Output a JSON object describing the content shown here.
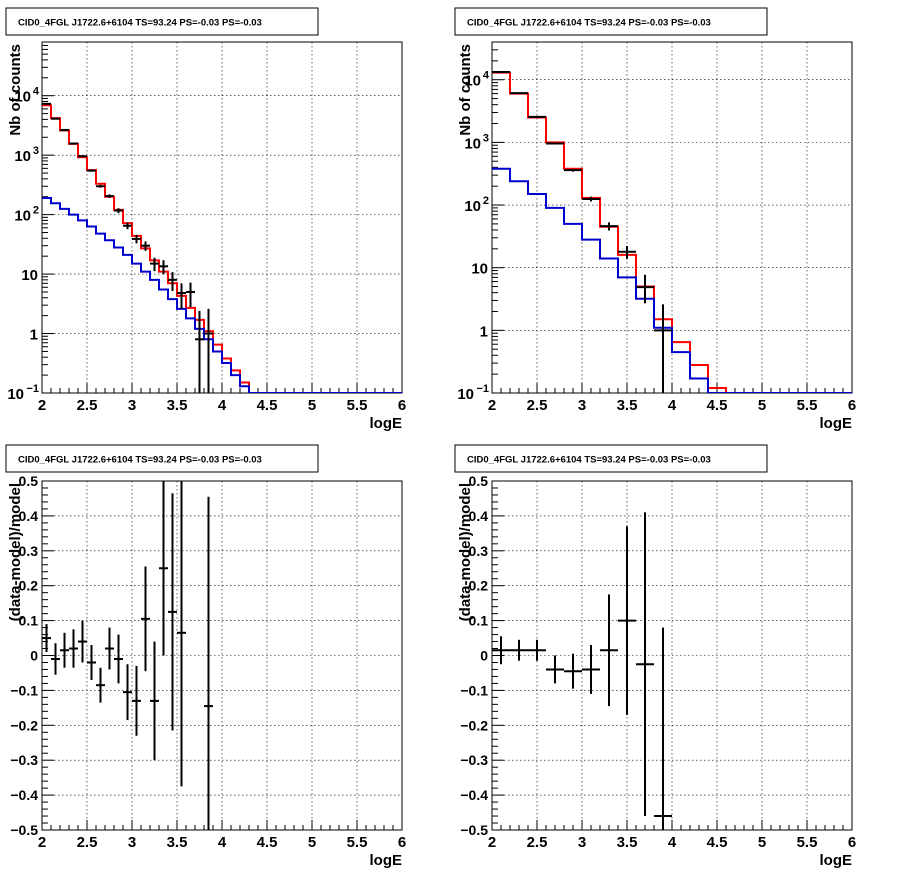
{
  "panel_title": "CID0_4FGL J1722.6+6104 TS=93.24 PS=-0.03 PS=-0.03",
  "colors": {
    "data": "#000000",
    "total_model": "#ff0000",
    "background_model": "#0000cc",
    "grid": "#000000"
  },
  "chart_data": [
    {
      "type": "line",
      "panel": "top-left",
      "title": "CID0_4FGL J1722.6+6104 TS=93.24 PS=-0.03 PS=-0.03",
      "xlabel": "logE",
      "ylabel": "Nb of counts",
      "xlim": [
        2,
        6
      ],
      "ylim": [
        0.1,
        80000
      ],
      "yscale": "log",
      "grid": true,
      "x_ticks": [
        "2",
        "2.5",
        "3",
        "3.5",
        "4",
        "4.5",
        "5",
        "5.5",
        "6"
      ],
      "y_ticks": [
        {
          "value": 0.1,
          "label": "10",
          "sup": "−1"
        },
        {
          "value": 1,
          "label": "1",
          "sup": ""
        },
        {
          "value": 10,
          "label": "10",
          "sup": ""
        },
        {
          "value": 100,
          "label": "10",
          "sup": "2"
        },
        {
          "value": 1000,
          "label": "10",
          "sup": "3"
        },
        {
          "value": 10000,
          "label": "10",
          "sup": "4"
        }
      ],
      "bin_edges": [
        2.0,
        2.1,
        2.2,
        2.3,
        2.4,
        2.5,
        2.6,
        2.7,
        2.8,
        2.9,
        3.0,
        3.1,
        3.2,
        3.3,
        3.4,
        3.5,
        3.6,
        3.7,
        3.8,
        3.9,
        4.0,
        4.1,
        4.2,
        4.3,
        4.4,
        4.5,
        4.6,
        4.7,
        4.8,
        4.9,
        5.0,
        5.1,
        5.2,
        5.3,
        5.4,
        5.5,
        5.6,
        5.7,
        5.8,
        5.9,
        6.0
      ],
      "series": [
        {
          "name": "",
          "color": "#ff0000",
          "style": "step",
          "values": [
            6900,
            4200,
            2600,
            1550,
            920,
            560,
            330,
            200,
            120,
            72,
            44,
            27,
            17,
            11,
            7,
            4.3,
            2.7,
            1.7,
            1.1,
            0.65,
            0.38,
            0.24,
            0.15,
            0.1,
            0.1,
            0.1,
            0.1,
            0.1,
            0.1,
            0.1,
            0.1,
            0.1,
            0.1,
            0.1,
            0.1,
            0.1,
            0.1,
            0.1,
            0.1,
            0.1
          ]
        },
        {
          "name": "",
          "color": "#0000cc",
          "style": "step",
          "values": [
            190,
            155,
            125,
            100,
            80,
            63,
            48,
            37,
            28,
            21,
            15,
            11,
            8,
            5.5,
            3.8,
            2.6,
            1.8,
            1.2,
            0.8,
            0.5,
            0.32,
            0.2,
            0.13,
            0.1,
            0.1,
            0.1,
            0.1,
            0.1,
            0.1,
            0.1,
            0.1,
            0.1,
            0.1,
            0.1,
            0.1,
            0.1,
            0.1,
            0.1,
            0.1,
            0.1
          ]
        },
        {
          "name": "",
          "color": "#000000",
          "style": "errorbar",
          "x": [
            2.05,
            2.15,
            2.25,
            2.35,
            2.45,
            2.55,
            2.65,
            2.75,
            2.85,
            2.95,
            3.05,
            3.15,
            3.25,
            3.35,
            3.45,
            3.55,
            3.65,
            3.75,
            3.85
          ],
          "y": [
            7300,
            4100,
            2650,
            1570,
            960,
            550,
            300,
            205,
            117,
            65,
            39,
            30,
            15,
            13.5,
            8,
            4.8,
            5,
            0.8,
            1
          ],
          "yerr_lo": [
            85,
            64,
            51,
            40,
            31,
            23,
            17,
            14,
            11,
            8,
            6.2,
            5.4,
            3.8,
            3.6,
            2.8,
            2.2,
            2.2,
            0.72,
            0.9
          ],
          "yerr_hi": [
            85,
            64,
            51,
            40,
            31,
            23,
            17,
            14,
            11,
            8,
            6.2,
            5.4,
            3.8,
            3.6,
            2.8,
            2.2,
            2.2,
            1.6,
            1.6
          ]
        }
      ]
    },
    {
      "type": "line",
      "panel": "top-right",
      "title": "CID0_4FGL J1722.6+6104 TS=93.24 PS=-0.03 PS=-0.03",
      "xlabel": "logE",
      "ylabel": "Nb of counts",
      "xlim": [
        2,
        6
      ],
      "ylim": [
        0.1,
        40000
      ],
      "yscale": "log",
      "grid": true,
      "x_ticks": [
        "2",
        "2.5",
        "3",
        "3.5",
        "4",
        "4.5",
        "5",
        "5.5",
        "6"
      ],
      "y_ticks": [
        {
          "value": 0.1,
          "label": "10",
          "sup": "−1"
        },
        {
          "value": 1,
          "label": "1",
          "sup": ""
        },
        {
          "value": 10,
          "label": "10",
          "sup": ""
        },
        {
          "value": 100,
          "label": "10",
          "sup": "2"
        },
        {
          "value": 1000,
          "label": "10",
          "sup": "3"
        },
        {
          "value": 10000,
          "label": "10",
          "sup": "4"
        }
      ],
      "bin_edges": [
        2.0,
        2.2,
        2.4,
        2.6,
        2.8,
        3.0,
        3.2,
        3.4,
        3.6,
        3.8,
        4.0,
        4.2,
        4.4,
        4.6,
        4.8,
        5.0,
        5.2,
        5.4,
        5.6,
        5.8,
        6.0
      ],
      "series": [
        {
          "name": "",
          "color": "#ff0000",
          "style": "step",
          "values": [
            13000,
            6000,
            2500,
            1000,
            380,
            130,
            45,
            16,
            5,
            1.5,
            0.65,
            0.28,
            0.12,
            0.1,
            0.1,
            0.1,
            0.1,
            0.1,
            0.1,
            0.1
          ]
        },
        {
          "name": "",
          "color": "#0000cc",
          "style": "step",
          "values": [
            380,
            240,
            150,
            90,
            50,
            28,
            14,
            7,
            3.2,
            1.1,
            0.45,
            0.17,
            0.1,
            0.1,
            0.1,
            0.1,
            0.1,
            0.1,
            0.1,
            0.1
          ]
        },
        {
          "name": "",
          "color": "#000000",
          "style": "errorbar",
          "x": [
            2.1,
            2.3,
            2.5,
            2.7,
            2.9,
            3.1,
            3.3,
            3.5,
            3.7,
            3.9
          ],
          "y": [
            13300,
            6100,
            2550,
            960,
            360,
            125,
            46,
            18,
            4.9,
            1
          ],
          "yerr_lo": [
            115,
            78,
            50,
            31,
            19,
            11,
            6.8,
            4.2,
            2.2,
            0.9
          ],
          "yerr_hi": [
            115,
            78,
            50,
            31,
            19,
            11,
            6.8,
            4.2,
            2.8,
            1.6
          ]
        }
      ]
    },
    {
      "type": "scatter",
      "panel": "bottom-left",
      "title": "CID0_4FGL J1722.6+6104 TS=93.24 PS=-0.03 PS=-0.03",
      "xlabel": "logE",
      "ylabel": "(data-model)/model",
      "xlim": [
        2,
        6
      ],
      "ylim": [
        -0.5,
        0.5
      ],
      "grid": true,
      "x_ticks": [
        "2",
        "2.5",
        "3",
        "3.5",
        "4",
        "4.5",
        "5",
        "5.5",
        "6"
      ],
      "y_ticks": [
        "−0.5",
        "−0.4",
        "−0.3",
        "−0.2",
        "−0.1",
        "0",
        "0.1",
        "0.2",
        "0.3",
        "0.4",
        "0.5"
      ],
      "series": [
        {
          "name": "",
          "color": "#000000",
          "style": "errorbar",
          "x_halfwidth": 0.05,
          "x": [
            2.05,
            2.15,
            2.25,
            2.35,
            2.45,
            2.55,
            2.65,
            2.75,
            2.85,
            2.95,
            3.05,
            3.15,
            3.25,
            3.35,
            3.45,
            3.55,
            3.85
          ],
          "y": [
            0.05,
            -0.01,
            0.015,
            0.02,
            0.04,
            -0.02,
            -0.085,
            0.02,
            -0.01,
            -0.105,
            -0.13,
            0.105,
            -0.13,
            0.25,
            0.125,
            0.065,
            -0.145
          ],
          "yerr": [
            0.04,
            0.045,
            0.05,
            0.055,
            0.06,
            0.05,
            0.05,
            0.06,
            0.07,
            0.08,
            0.1,
            0.15,
            0.17,
            0.25,
            0.34,
            0.44,
            0.6
          ]
        }
      ]
    },
    {
      "type": "scatter",
      "panel": "bottom-right",
      "title": "CID0_4FGL J1722.6+6104 TS=93.24 PS=-0.03 PS=-0.03",
      "xlabel": "logE",
      "ylabel": "(data-model)/model",
      "xlim": [
        2,
        6
      ],
      "ylim": [
        -0.5,
        0.5
      ],
      "grid": true,
      "x_ticks": [
        "2",
        "2.5",
        "3",
        "3.5",
        "4",
        "4.5",
        "5",
        "5.5",
        "6"
      ],
      "y_ticks": [
        "−0.5",
        "−0.4",
        "−0.3",
        "−0.2",
        "−0.1",
        "0",
        "0.1",
        "0.2",
        "0.3",
        "0.4",
        "0.5"
      ],
      "series": [
        {
          "name": "",
          "color": "#000000",
          "style": "errorbar",
          "x_halfwidth": 0.1,
          "x": [
            2.1,
            2.3,
            2.5,
            2.7,
            2.9,
            3.1,
            3.3,
            3.5,
            3.7,
            3.9
          ],
          "y": [
            0.015,
            0.015,
            0.015,
            -0.04,
            -0.045,
            -0.04,
            0.015,
            0.1,
            -0.025,
            -0.46
          ],
          "yerr": [
            0.04,
            0.03,
            0.03,
            0.04,
            0.05,
            0.07,
            0.16,
            0.27,
            0.435,
            0.54
          ]
        }
      ]
    }
  ]
}
